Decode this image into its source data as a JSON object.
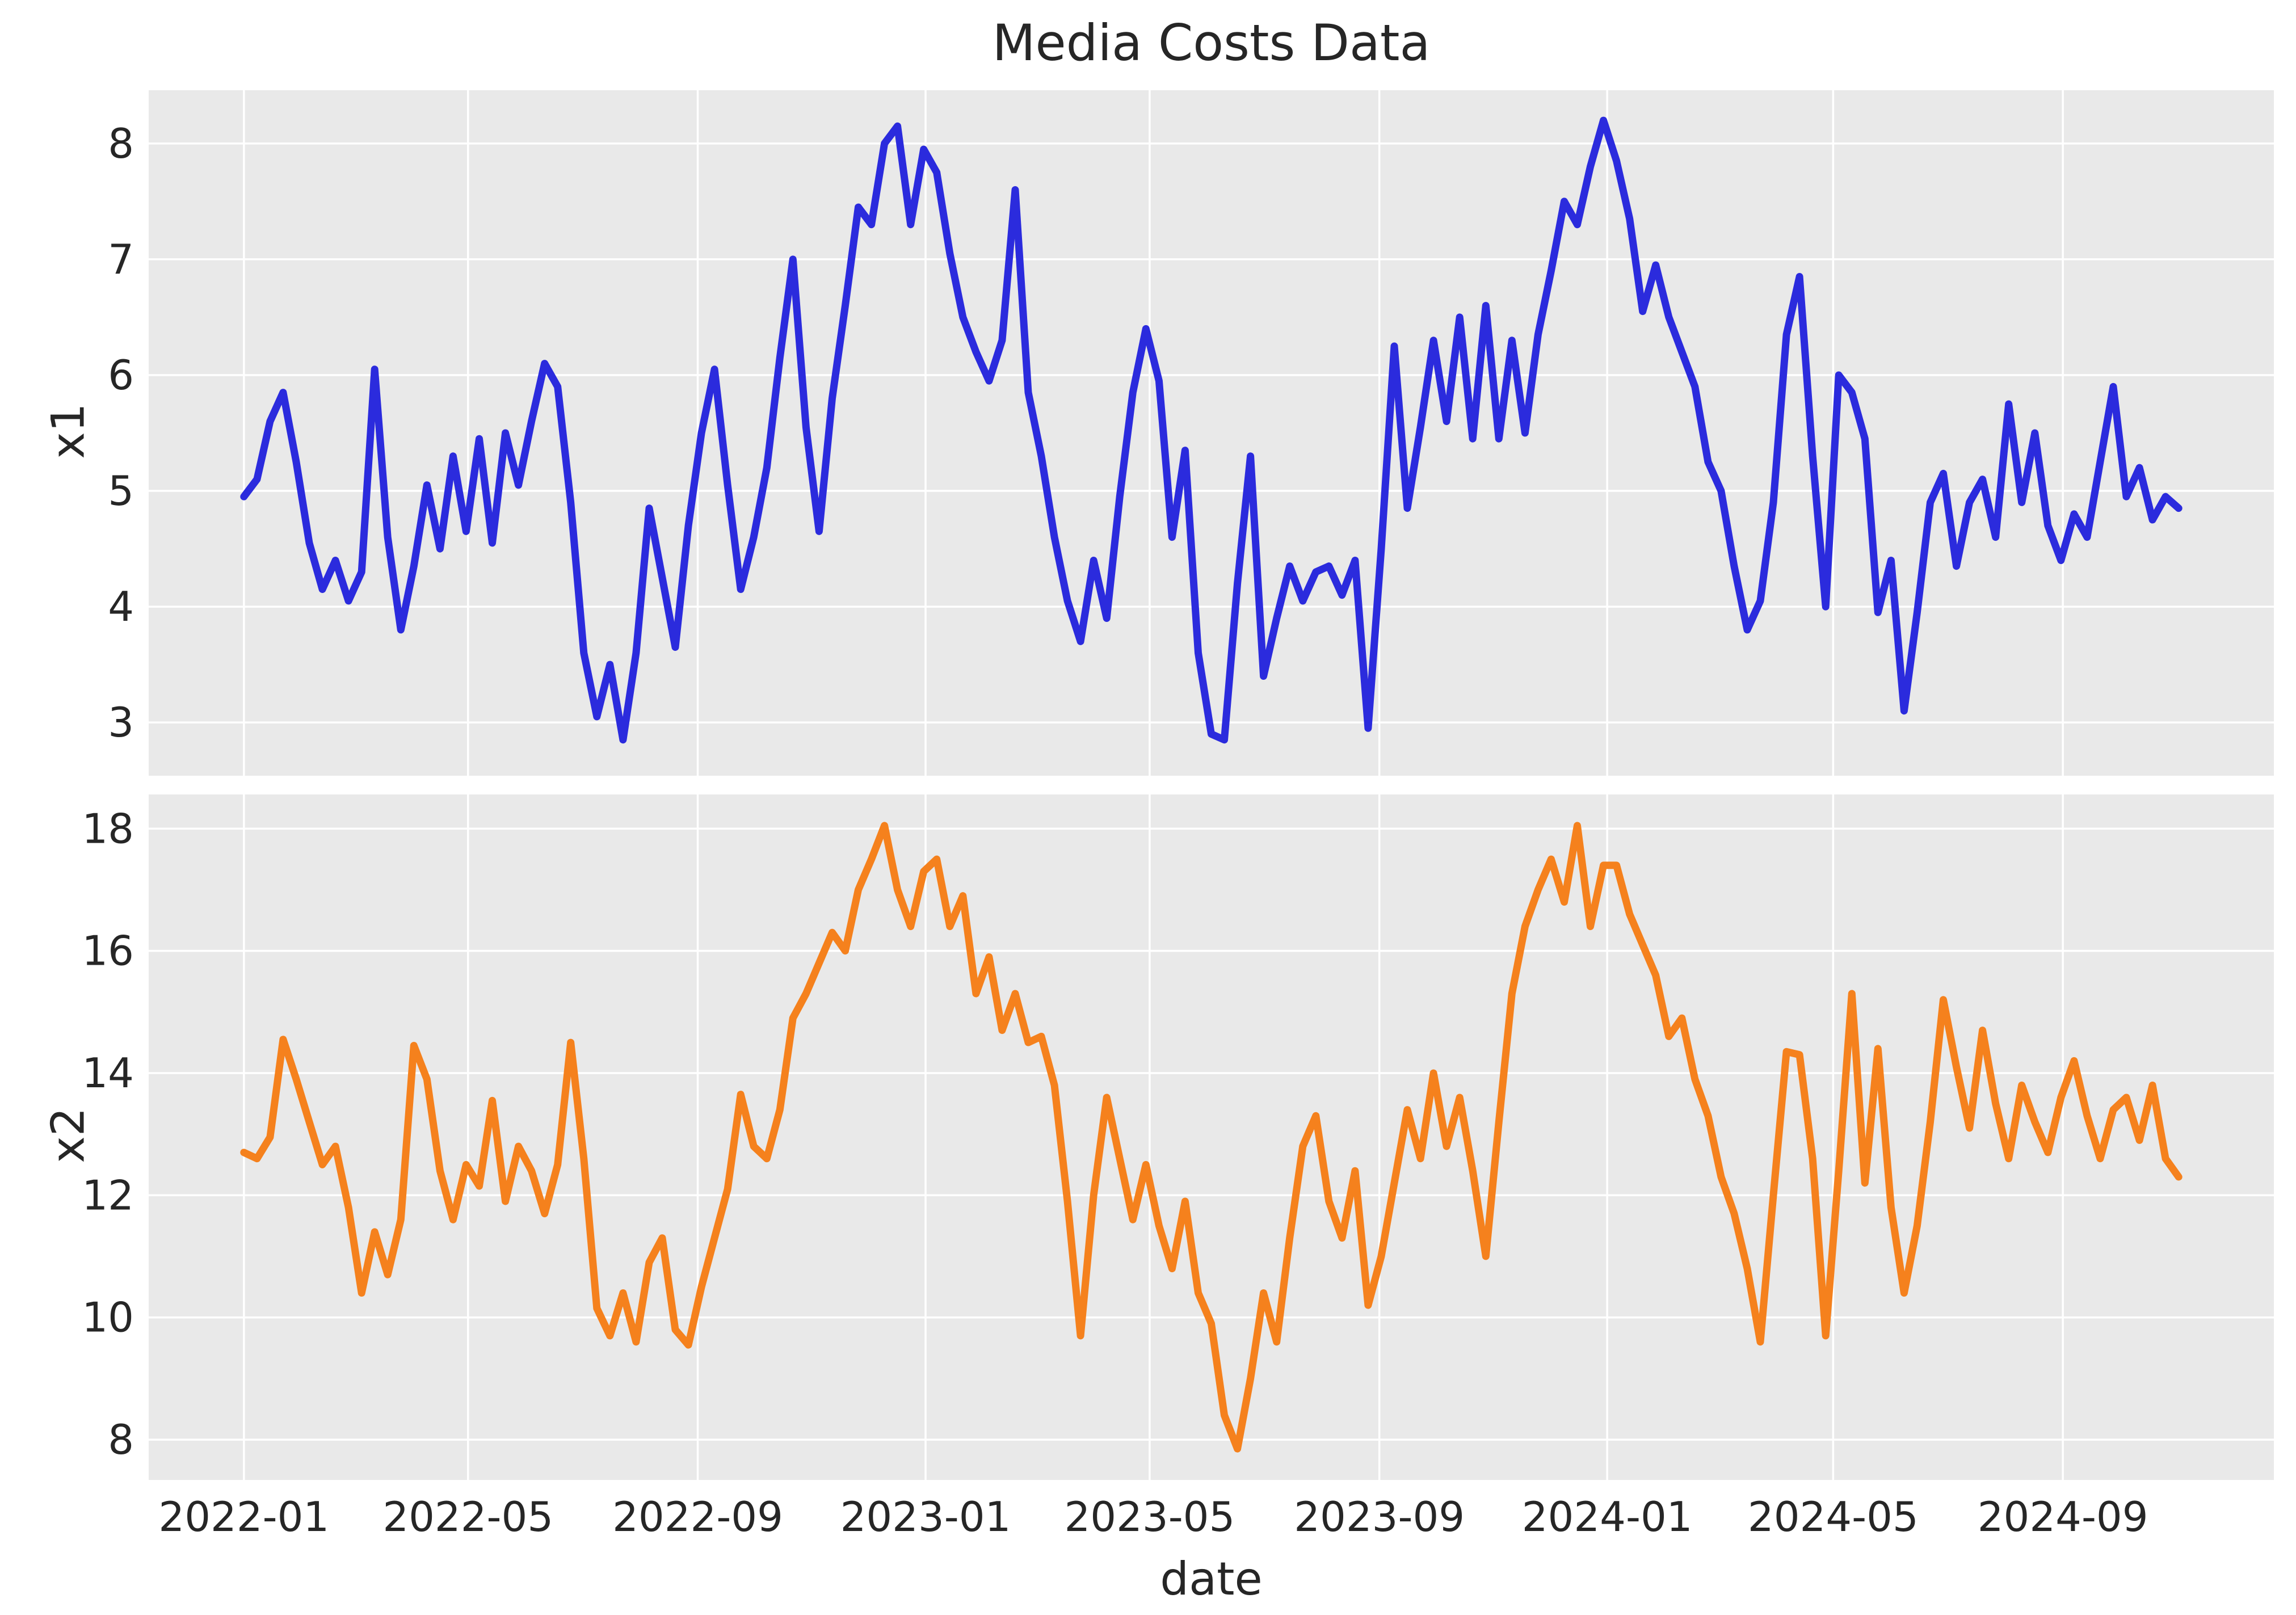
{
  "title": "Media Costs Data",
  "xlabel": "date",
  "colors": {
    "figure_background": "#ffffff",
    "axes_background": "#e9e9e9",
    "grid": "#ffffff",
    "x1_line": "#2b2bdd",
    "x2_line": "#f5811d",
    "text": "#262626"
  },
  "x_axis": {
    "start_date": "2022-01-01",
    "step_days": 7,
    "xlim_days": [
      -51,
      1087
    ],
    "tick_labels": [
      "2022-01",
      "2022-05",
      "2022-09",
      "2023-01",
      "2023-05",
      "2023-09",
      "2024-01",
      "2024-05",
      "2024-09"
    ],
    "tick_day_offsets": [
      0,
      120,
      243,
      365,
      485,
      608,
      730,
      851,
      974
    ]
  },
  "chart_data": [
    {
      "type": "line",
      "name": "x1",
      "ylabel": "x1",
      "color_key": "x1_line",
      "yticks": [
        3,
        4,
        5,
        6,
        7,
        8
      ],
      "ylim": [
        2.54,
        8.46
      ],
      "grid": true,
      "legend": "none",
      "values": [
        4.95,
        5.1,
        5.6,
        5.85,
        5.25,
        4.55,
        4.15,
        4.4,
        4.05,
        4.3,
        6.05,
        4.6,
        3.8,
        4.35,
        5.05,
        4.5,
        5.3,
        4.65,
        5.45,
        4.55,
        5.5,
        5.05,
        5.6,
        6.1,
        5.9,
        4.9,
        3.6,
        3.05,
        3.5,
        2.85,
        3.6,
        4.85,
        4.25,
        3.65,
        4.7,
        5.5,
        6.05,
        5.05,
        4.15,
        4.6,
        5.2,
        6.15,
        7.0,
        5.55,
        4.65,
        5.8,
        6.6,
        7.45,
        7.3,
        8.0,
        8.15,
        7.3,
        7.95,
        7.75,
        7.05,
        6.5,
        6.2,
        5.95,
        6.3,
        7.6,
        5.85,
        5.3,
        4.6,
        4.05,
        3.7,
        4.4,
        3.9,
        4.95,
        5.85,
        6.4,
        5.95,
        4.6,
        5.35,
        3.6,
        2.9,
        2.85,
        4.2,
        5.3,
        3.4,
        3.9,
        4.35,
        4.05,
        4.3,
        4.35,
        4.1,
        4.4,
        2.95,
        4.5,
        6.25,
        4.85,
        5.55,
        6.3,
        5.6,
        6.5,
        5.45,
        6.6,
        5.45,
        6.3,
        5.5,
        6.35,
        6.9,
        7.5,
        7.3,
        7.8,
        8.2,
        7.85,
        7.35,
        6.55,
        6.95,
        6.5,
        6.2,
        5.9,
        5.25,
        5.0,
        4.35,
        3.8,
        4.05,
        4.9,
        6.35,
        6.85,
        5.3,
        4.0,
        6.0,
        5.85,
        5.45,
        3.95,
        4.4,
        3.1,
        3.95,
        4.9,
        5.15,
        4.35,
        4.9,
        5.1,
        4.6,
        5.75,
        4.9,
        5.5,
        4.7,
        4.4,
        4.8,
        4.6,
        5.25,
        5.9,
        4.95,
        5.2,
        4.75,
        4.95,
        4.85
      ]
    },
    {
      "type": "line",
      "name": "x2",
      "ylabel": "x2",
      "color_key": "x2_line",
      "yticks": [
        8,
        10,
        12,
        14,
        16,
        18
      ],
      "ylim": [
        7.34,
        18.56
      ],
      "grid": true,
      "legend": "none",
      "values": [
        12.7,
        12.6,
        12.95,
        14.55,
        13.9,
        13.2,
        12.5,
        12.8,
        11.8,
        10.4,
        11.4,
        10.7,
        11.6,
        14.45,
        13.9,
        12.4,
        11.6,
        12.5,
        12.15,
        13.55,
        11.9,
        12.8,
        12.4,
        11.7,
        12.5,
        14.5,
        12.6,
        10.15,
        9.7,
        10.4,
        9.6,
        10.9,
        11.3,
        9.8,
        9.55,
        10.5,
        11.3,
        12.1,
        13.65,
        12.8,
        12.6,
        13.4,
        14.9,
        15.3,
        15.8,
        16.3,
        16.0,
        17.0,
        17.5,
        18.05,
        17.0,
        16.4,
        17.3,
        17.5,
        16.4,
        16.9,
        15.3,
        15.9,
        14.7,
        15.3,
        14.5,
        14.6,
        13.8,
        11.9,
        9.7,
        12.0,
        13.6,
        12.6,
        11.6,
        12.5,
        11.5,
        10.8,
        11.9,
        10.4,
        9.9,
        8.4,
        7.85,
        9.0,
        10.4,
        9.6,
        11.3,
        12.8,
        13.3,
        11.9,
        11.3,
        12.4,
        10.2,
        11.0,
        12.2,
        13.4,
        12.6,
        14.0,
        12.8,
        13.6,
        12.4,
        11.0,
        13.2,
        15.3,
        16.4,
        17.0,
        17.5,
        16.8,
        18.05,
        16.4,
        17.4,
        17.4,
        16.6,
        16.1,
        15.6,
        14.6,
        14.9,
        13.9,
        13.3,
        12.3,
        11.7,
        10.8,
        9.6,
        12.0,
        14.35,
        14.3,
        12.6,
        9.7,
        12.4,
        15.3,
        12.2,
        14.4,
        11.8,
        10.4,
        11.5,
        13.2,
        15.2,
        14.1,
        13.1,
        14.7,
        13.5,
        12.6,
        13.8,
        13.2,
        12.7,
        13.6,
        14.2,
        13.3,
        12.6,
        13.4,
        13.6,
        12.9,
        13.8,
        12.6,
        12.3
      ]
    }
  ]
}
